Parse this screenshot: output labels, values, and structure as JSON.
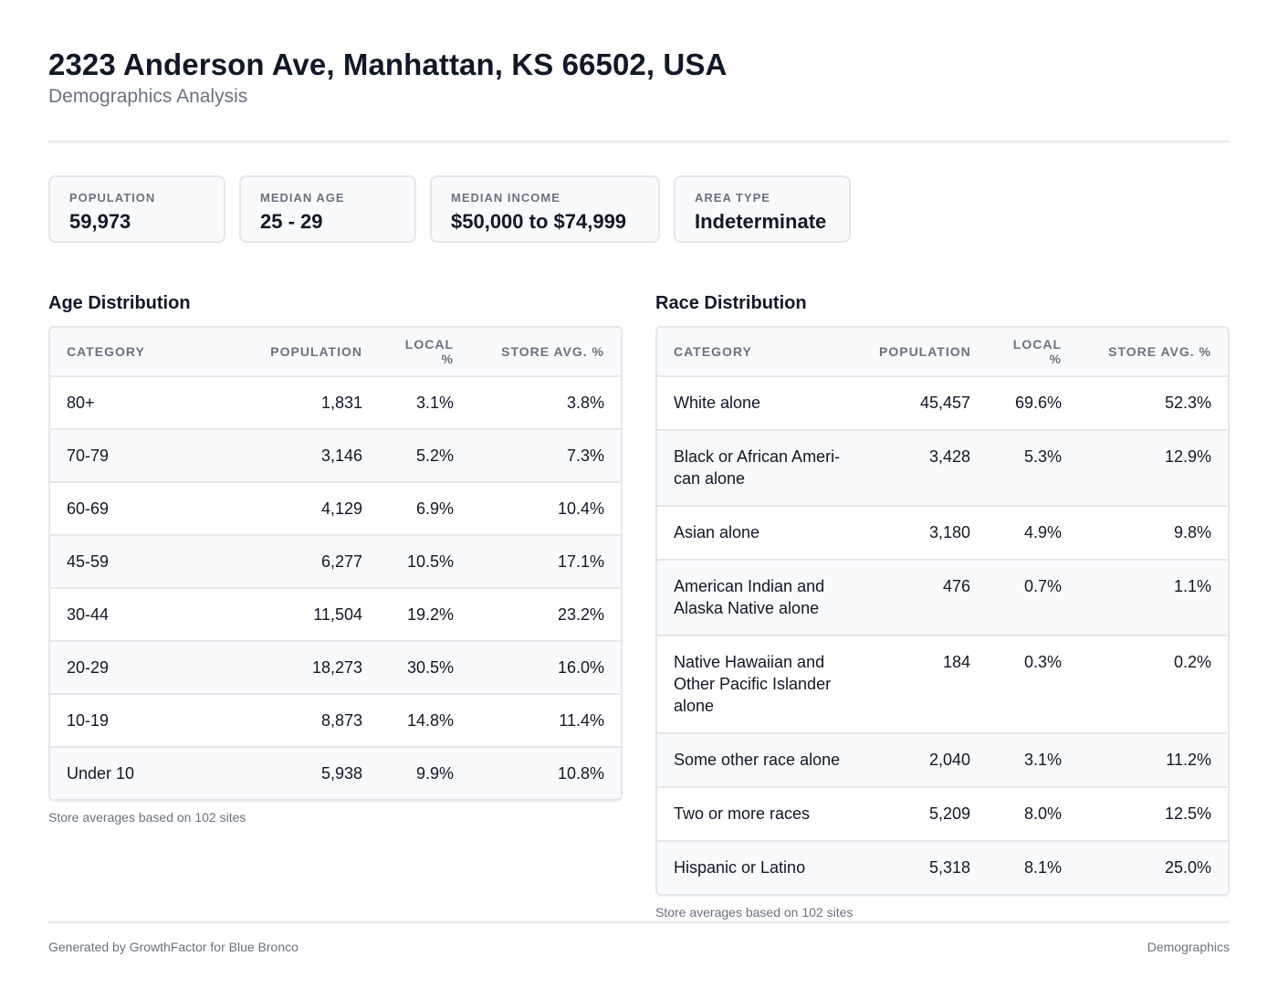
{
  "header": {
    "title": "2323 Anderson Ave, Manhattan, KS 66502, USA",
    "subtitle": "Demographics Analysis"
  },
  "stats": [
    {
      "label": "POPULATION",
      "value": "59,973"
    },
    {
      "label": "MEDIAN AGE",
      "value": "25 - 29"
    },
    {
      "label": "MEDIAN INCOME",
      "value": "$50,000 to $74,999"
    },
    {
      "label": "AREA TYPE",
      "value": "Indeterminate"
    }
  ],
  "age": {
    "title": "Age Distribution",
    "columns": [
      "CATEGORY",
      "POPULATION",
      "LOCAL %",
      "STORE AVG. %"
    ],
    "rows": [
      [
        "80+",
        "1,831",
        "3.1%",
        "3.8%"
      ],
      [
        "70-79",
        "3,146",
        "5.2%",
        "7.3%"
      ],
      [
        "60-69",
        "4,129",
        "6.9%",
        "10.4%"
      ],
      [
        "45-59",
        "6,277",
        "10.5%",
        "17.1%"
      ],
      [
        "30-44",
        "11,504",
        "19.2%",
        "23.2%"
      ],
      [
        "20-29",
        "18,273",
        "30.5%",
        "16.0%"
      ],
      [
        "10-19",
        "8,873",
        "14.8%",
        "11.4%"
      ],
      [
        "Under 10",
        "5,938",
        "9.9%",
        "10.8%"
      ]
    ],
    "note": "Store averages based on 102 sites"
  },
  "race": {
    "title": "Race Distribution",
    "columns": [
      "CATEGORY",
      "POPULATION",
      "LOCAL %",
      "STORE AVG. %"
    ],
    "rows": [
      [
        "White alone",
        "45,457",
        "69.6%",
        "52.3%"
      ],
      [
        "Black or African Ameri-\ncan alone",
        "3,428",
        "5.3%",
        "12.9%"
      ],
      [
        "Asian alone",
        "3,180",
        "4.9%",
        "9.8%"
      ],
      [
        "American Indian and\nAlaska Native alone",
        "476",
        "0.7%",
        "1.1%"
      ],
      [
        "Native Hawaiian and\nOther Pacific Islander\nalone",
        "184",
        "0.3%",
        "0.2%"
      ],
      [
        "Some other race alone",
        "2,040",
        "3.1%",
        "11.2%"
      ],
      [
        "Two or more races",
        "5,209",
        "8.0%",
        "12.5%"
      ],
      [
        "Hispanic or Latino",
        "5,318",
        "8.1%",
        "25.0%"
      ]
    ],
    "note": "Store averages based on 102 sites"
  },
  "footer": {
    "left": "Generated by GrowthFactor for Blue Bronco",
    "right": "Demographics"
  }
}
